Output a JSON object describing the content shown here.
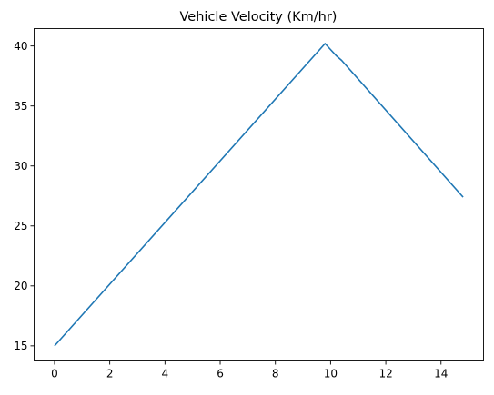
{
  "chart_data": {
    "type": "line",
    "title": "Vehicle Velocity (Km/hr)",
    "xlabel": "",
    "ylabel": "",
    "xlim": [
      -0.74,
      15.54
    ],
    "ylim": [
      13.74,
      41.45
    ],
    "grid": false,
    "legend": "none",
    "xticks": [
      0,
      2,
      4,
      6,
      8,
      10,
      12,
      14
    ],
    "yticks": [
      15,
      20,
      25,
      30,
      35,
      40
    ],
    "series": [
      {
        "color": "#1f77b4",
        "points": [
          [
            0,
            15.0
          ],
          [
            9.8,
            40.2
          ],
          [
            10.0,
            39.7
          ],
          [
            10.2,
            39.2
          ],
          [
            10.4,
            38.8
          ],
          [
            14.8,
            27.4
          ]
        ]
      }
    ]
  }
}
